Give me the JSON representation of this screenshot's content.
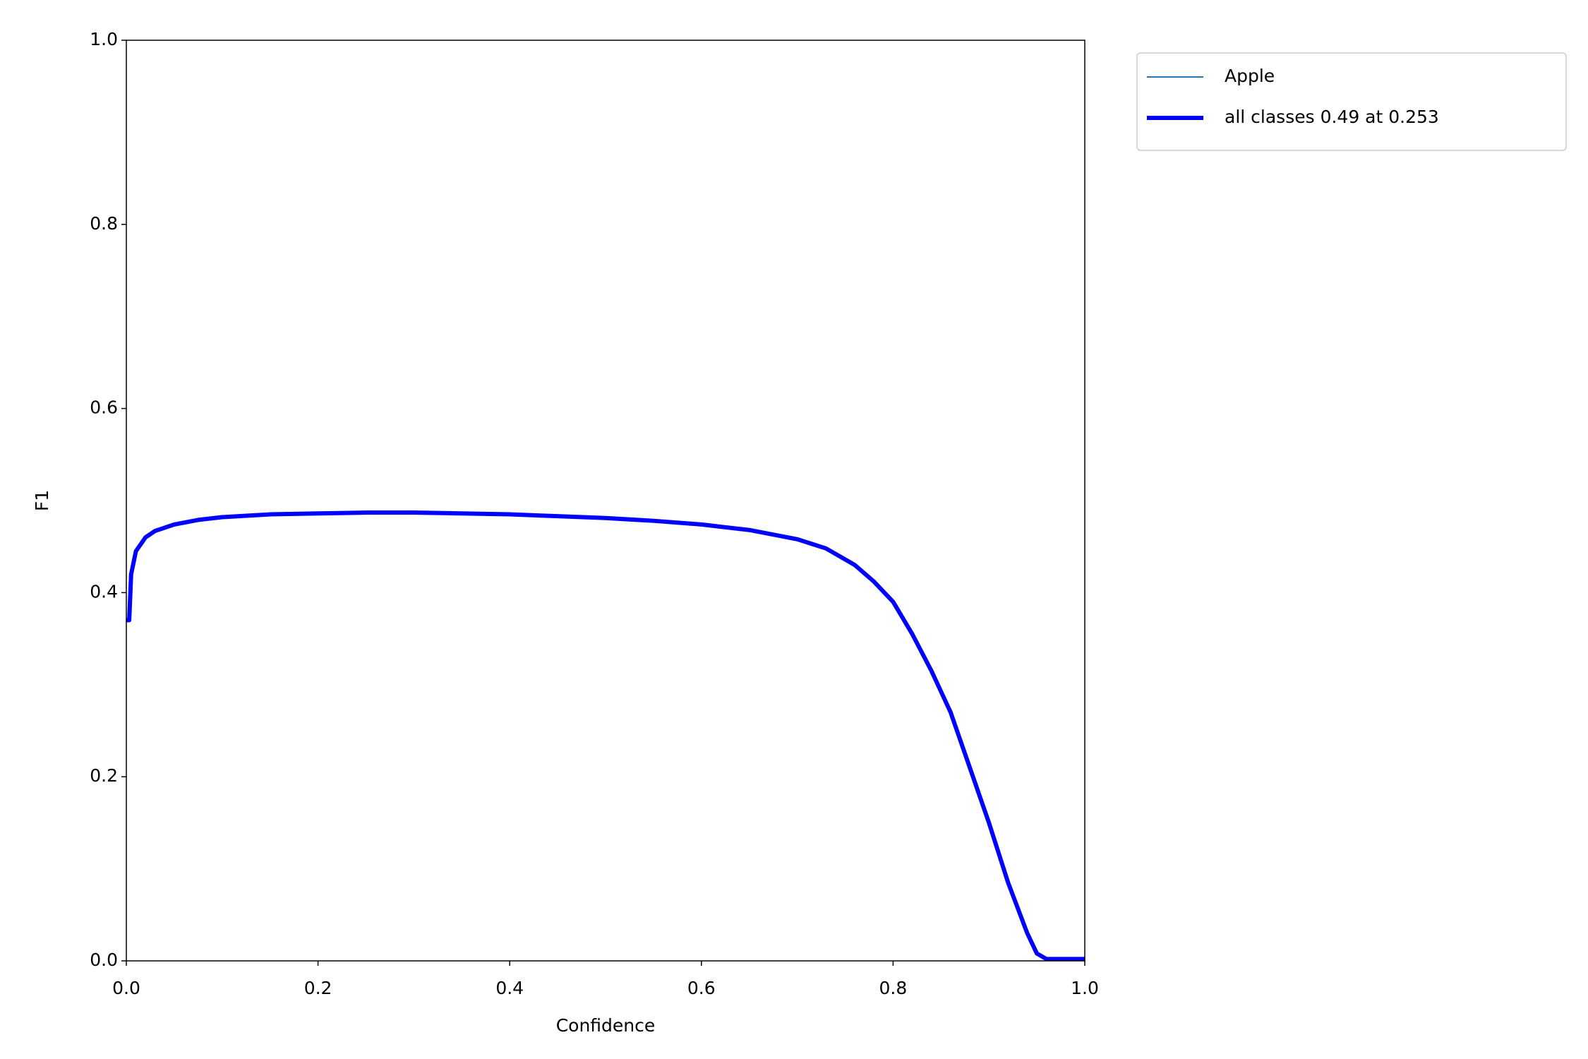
{
  "chart_data": {
    "type": "line",
    "xlabel": "Confidence",
    "ylabel": "F1",
    "x": [
      0.0,
      0.003,
      0.005,
      0.01,
      0.02,
      0.03,
      0.05,
      0.075,
      0.1,
      0.15,
      0.2,
      0.253,
      0.3,
      0.35,
      0.4,
      0.45,
      0.5,
      0.55,
      0.6,
      0.65,
      0.7,
      0.73,
      0.76,
      0.78,
      0.8,
      0.82,
      0.84,
      0.86,
      0.88,
      0.9,
      0.92,
      0.94,
      0.95,
      0.96,
      1.0
    ],
    "series": [
      {
        "name": "Apple",
        "color": "#1f77b4",
        "linewidth": 1,
        "values": [
          0.37,
          0.37,
          0.42,
          0.445,
          0.46,
          0.467,
          0.474,
          0.479,
          0.482,
          0.485,
          0.486,
          0.487,
          0.487,
          0.486,
          0.485,
          0.483,
          0.481,
          0.478,
          0.474,
          0.468,
          0.458,
          0.448,
          0.43,
          0.412,
          0.39,
          0.355,
          0.315,
          0.27,
          0.21,
          0.15,
          0.085,
          0.03,
          0.008,
          0.002,
          0.002
        ]
      },
      {
        "name": "all classes 0.49 at 0.253",
        "color": "#0000ff",
        "linewidth": 3,
        "values": [
          0.37,
          0.37,
          0.42,
          0.445,
          0.46,
          0.467,
          0.474,
          0.479,
          0.482,
          0.485,
          0.486,
          0.487,
          0.487,
          0.486,
          0.485,
          0.483,
          0.481,
          0.478,
          0.474,
          0.468,
          0.458,
          0.448,
          0.43,
          0.412,
          0.39,
          0.355,
          0.315,
          0.27,
          0.21,
          0.15,
          0.085,
          0.03,
          0.008,
          0.002,
          0.002
        ]
      }
    ],
    "xlim": [
      0,
      1
    ],
    "ylim": [
      0,
      1
    ],
    "xticks": [
      {
        "value": 0,
        "label": "0.0"
      },
      0.2,
      0.4,
      0.6,
      0.8,
      {
        "value": 1,
        "label": "1.0"
      }
    ],
    "yticks": [
      {
        "value": 0,
        "label": "0.0"
      },
      0.2,
      0.4,
      0.6,
      0.8,
      {
        "value": 1,
        "label": "1.0"
      }
    ],
    "grid": false,
    "legend": "outside-upper-right"
  }
}
